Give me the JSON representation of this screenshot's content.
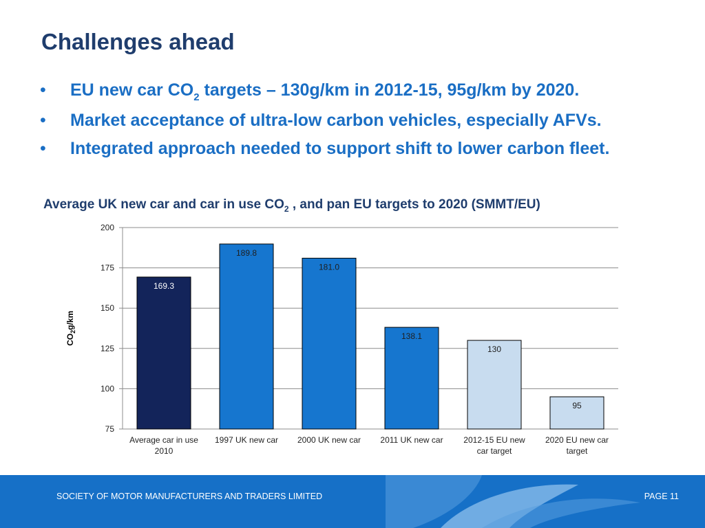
{
  "slide": {
    "title": "Challenges ahead",
    "bullets": [
      {
        "pre": "EU new car CO",
        "sub": "2",
        "post": " targets – 130g/km in 2012-15, 95g/km by 2020."
      },
      {
        "pre": "Market acceptance of ultra-low carbon vehicles, especially AFVs.",
        "sub": "",
        "post": ""
      },
      {
        "pre": "Integrated approach needed to support shift to lower carbon fleet.",
        "sub": "",
        "post": ""
      }
    ],
    "bullet_glyph": "•"
  },
  "chart_data": {
    "type": "bar",
    "title_pre": "Average UK new car and car in use CO",
    "title_sub": "2",
    "title_post": " , and pan EU targets to 2020 (SMMT/EU)",
    "ylabel_pre": "CO",
    "ylabel_sub": "2",
    "ylabel_post": "g/km",
    "xlabel": "",
    "ylim": [
      75,
      200
    ],
    "yticks": [
      75,
      100,
      125,
      150,
      175,
      200
    ],
    "grid": true,
    "categories": [
      [
        "Average car in use",
        "2010"
      ],
      [
        "1997 UK new car"
      ],
      [
        "2000 UK new car"
      ],
      [
        "2011 UK new car"
      ],
      [
        "2012-15 EU new",
        "car target"
      ],
      [
        "2020 EU new car",
        "target"
      ]
    ],
    "values": [
      169.3,
      189.8,
      181.0,
      138.1,
      130,
      95
    ],
    "value_labels": [
      "169.3",
      "189.8",
      "181.0",
      "138.1",
      "130",
      "95"
    ],
    "bar_colors": [
      "#13245a",
      "#1676cf",
      "#1676cf",
      "#1676cf",
      "#c8dcef",
      "#c8dcef"
    ],
    "label_colors": [
      "#ffffff",
      "#1f1f1f",
      "#1f1f1f",
      "#1f1f1f",
      "#1f1f1f",
      "#1f1f1f"
    ]
  },
  "footer": {
    "left": "SOCIETY OF MOTOR MANUFACTURERS AND TRADERS LIMITED",
    "right": "PAGE 11",
    "color": "#1670c7"
  }
}
